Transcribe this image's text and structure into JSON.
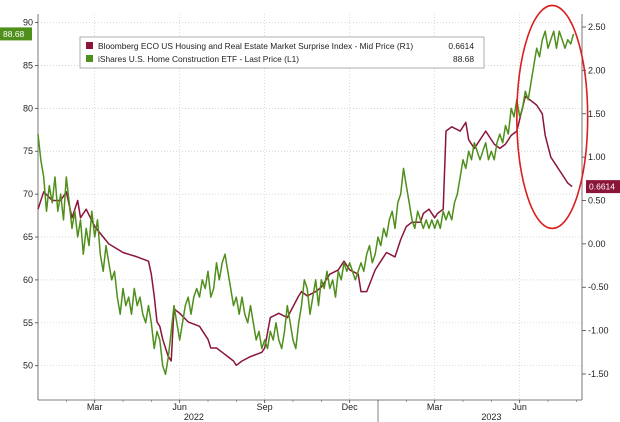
{
  "chart_data": {
    "type": "line",
    "legend": {
      "placement": "top-left",
      "entries": [
        {
          "label": "Bloomberg ECO US Housing and Real Estate Market Surprise Index - Mid Price (R1)",
          "value": "0.6614",
          "color": "#8a1538"
        },
        {
          "label": "iShares U.S. Home Construction ETF - Last Price (L1)",
          "value": "88.68",
          "color": "#4f8f1c"
        }
      ]
    },
    "x_axis": {
      "month_labels": [
        "Mar",
        "Jun",
        "Sep",
        "Dec",
        "Mar",
        "Jun"
      ],
      "month_positions": [
        2,
        5,
        8,
        11,
        14,
        17
      ],
      "year_labels": [
        "2022",
        "2023"
      ],
      "year_positions": [
        5.5,
        16
      ],
      "year_boundary": 12,
      "range": [
        0,
        19.2
      ]
    },
    "y_left": {
      "range": [
        46,
        91
      ],
      "ticks": [
        50,
        55,
        60,
        65,
        70,
        75,
        80,
        85,
        90
      ]
    },
    "y_right": {
      "range": [
        -1.8,
        2.65
      ],
      "ticks": [
        -1.5,
        -1.0,
        -0.5,
        0.0,
        0.5,
        1.0,
        1.5,
        2.0,
        2.5
      ],
      "tick_labels": [
        "-1.50",
        "-1.00",
        "-0.50",
        "0.00",
        "0.50",
        "1.00",
        "1.50",
        "2.00",
        "2.50"
      ]
    },
    "grid": true,
    "badges": {
      "left": "88.68",
      "right": "0.6614"
    },
    "series": [
      {
        "id": "housing_surprise",
        "axis": "right",
        "color": "#8a1538",
        "points": [
          [
            0.0,
            0.4
          ],
          [
            0.2,
            0.6
          ],
          [
            0.5,
            0.5
          ],
          [
            0.8,
            0.5
          ],
          [
            1.0,
            0.6
          ],
          [
            1.2,
            0.3
          ],
          [
            1.4,
            0.5
          ],
          [
            1.5,
            0.3
          ],
          [
            1.7,
            0.4
          ],
          [
            2.0,
            0.2
          ],
          [
            2.5,
            0.0
          ],
          [
            3.0,
            -0.1
          ],
          [
            3.5,
            -0.15
          ],
          [
            3.9,
            -0.2
          ],
          [
            4.0,
            -0.35
          ],
          [
            4.1,
            -0.6
          ],
          [
            4.2,
            -0.9
          ],
          [
            4.3,
            -0.95
          ],
          [
            4.4,
            -1.1
          ],
          [
            4.6,
            -1.3
          ],
          [
            4.7,
            -1.35
          ],
          [
            4.8,
            -0.75
          ],
          [
            5.0,
            -0.8
          ],
          [
            5.3,
            -0.9
          ],
          [
            5.7,
            -0.95
          ],
          [
            6.0,
            -1.1
          ],
          [
            6.1,
            -1.2
          ],
          [
            6.3,
            -1.2
          ],
          [
            6.5,
            -1.25
          ],
          [
            6.7,
            -1.3
          ],
          [
            6.9,
            -1.35
          ],
          [
            7.0,
            -1.4
          ],
          [
            7.2,
            -1.35
          ],
          [
            7.5,
            -1.3
          ],
          [
            7.9,
            -1.25
          ],
          [
            8.0,
            -1.2
          ],
          [
            8.2,
            -0.85
          ],
          [
            8.5,
            -0.8
          ],
          [
            8.8,
            -0.85
          ],
          [
            9.2,
            -0.6
          ],
          [
            9.3,
            -0.55
          ],
          [
            9.5,
            -0.6
          ],
          [
            9.8,
            -0.55
          ],
          [
            10.0,
            -0.5
          ],
          [
            10.3,
            -0.35
          ],
          [
            10.6,
            -0.3
          ],
          [
            10.8,
            -0.2
          ],
          [
            11.0,
            -0.3
          ],
          [
            11.3,
            -0.35
          ],
          [
            11.4,
            -0.55
          ],
          [
            11.6,
            -0.55
          ],
          [
            11.9,
            -0.3
          ],
          [
            12.1,
            -0.2
          ],
          [
            12.3,
            -0.1
          ],
          [
            12.6,
            -0.15
          ],
          [
            12.8,
            0.05
          ],
          [
            13.0,
            0.2
          ],
          [
            13.2,
            0.25
          ],
          [
            13.5,
            0.25
          ],
          [
            13.6,
            0.35
          ],
          [
            13.8,
            0.4
          ],
          [
            14.0,
            0.3
          ],
          [
            14.1,
            0.35
          ],
          [
            14.3,
            0.4
          ],
          [
            14.4,
            1.3
          ],
          [
            14.6,
            1.35
          ],
          [
            14.9,
            1.3
          ],
          [
            15.1,
            1.4
          ],
          [
            15.2,
            1.2
          ],
          [
            15.4,
            1.1
          ],
          [
            15.6,
            1.2
          ],
          [
            15.8,
            1.3
          ],
          [
            16.1,
            1.15
          ],
          [
            16.3,
            1.1
          ],
          [
            16.5,
            1.15
          ],
          [
            16.7,
            1.25
          ],
          [
            16.9,
            1.3
          ],
          [
            17.2,
            1.7
          ],
          [
            17.4,
            1.65
          ],
          [
            17.6,
            1.6
          ],
          [
            17.8,
            1.5
          ],
          [
            17.9,
            1.25
          ],
          [
            18.1,
            1.0
          ],
          [
            18.3,
            0.9
          ],
          [
            18.5,
            0.8
          ],
          [
            18.7,
            0.7
          ],
          [
            18.85,
            0.66
          ]
        ]
      },
      {
        "id": "home_construction_etf",
        "axis": "left",
        "color": "#4f8f1c",
        "points": [
          [
            0.0,
            77
          ],
          [
            0.1,
            74
          ],
          [
            0.2,
            72
          ],
          [
            0.3,
            68
          ],
          [
            0.4,
            71
          ],
          [
            0.5,
            69
          ],
          [
            0.6,
            72
          ],
          [
            0.7,
            68
          ],
          [
            0.8,
            70
          ],
          [
            0.9,
            67
          ],
          [
            1.0,
            72
          ],
          [
            1.1,
            69
          ],
          [
            1.2,
            66
          ],
          [
            1.3,
            68
          ],
          [
            1.4,
            65
          ],
          [
            1.5,
            67
          ],
          [
            1.6,
            63
          ],
          [
            1.7,
            66
          ],
          [
            1.8,
            64
          ],
          [
            1.9,
            68
          ],
          [
            2.0,
            65
          ],
          [
            2.1,
            67
          ],
          [
            2.2,
            63
          ],
          [
            2.3,
            61
          ],
          [
            2.4,
            64
          ],
          [
            2.5,
            62
          ],
          [
            2.6,
            60
          ],
          [
            2.7,
            61
          ],
          [
            2.8,
            58
          ],
          [
            2.9,
            56
          ],
          [
            3.0,
            59
          ],
          [
            3.1,
            57
          ],
          [
            3.2,
            58
          ],
          [
            3.3,
            56
          ],
          [
            3.4,
            59
          ],
          [
            3.5,
            57
          ],
          [
            3.6,
            58
          ],
          [
            3.7,
            56
          ],
          [
            3.8,
            55
          ],
          [
            3.9,
            57
          ],
          [
            4.0,
            55
          ],
          [
            4.1,
            52
          ],
          [
            4.2,
            54
          ],
          [
            4.3,
            53
          ],
          [
            4.4,
            50
          ],
          [
            4.5,
            49
          ],
          [
            4.6,
            51
          ],
          [
            4.7,
            54
          ],
          [
            4.8,
            57
          ],
          [
            4.9,
            55
          ],
          [
            5.0,
            53
          ],
          [
            5.1,
            55
          ],
          [
            5.2,
            57
          ],
          [
            5.3,
            58
          ],
          [
            5.4,
            56
          ],
          [
            5.5,
            58
          ],
          [
            5.6,
            59
          ],
          [
            5.7,
            58
          ],
          [
            5.8,
            60
          ],
          [
            5.9,
            59
          ],
          [
            6.0,
            61
          ],
          [
            6.1,
            58
          ],
          [
            6.2,
            59
          ],
          [
            6.3,
            62
          ],
          [
            6.4,
            60
          ],
          [
            6.5,
            62
          ],
          [
            6.6,
            63
          ],
          [
            6.7,
            61
          ],
          [
            6.8,
            59
          ],
          [
            6.9,
            57
          ],
          [
            7.0,
            58
          ],
          [
            7.1,
            56
          ],
          [
            7.2,
            58
          ],
          [
            7.3,
            56
          ],
          [
            7.4,
            55
          ],
          [
            7.5,
            57
          ],
          [
            7.6,
            55
          ],
          [
            7.7,
            53
          ],
          [
            7.8,
            54
          ],
          [
            7.9,
            52
          ],
          [
            8.0,
            53
          ],
          [
            8.1,
            52
          ],
          [
            8.2,
            54
          ],
          [
            8.3,
            53
          ],
          [
            8.4,
            55
          ],
          [
            8.5,
            53
          ],
          [
            8.6,
            52
          ],
          [
            8.7,
            54
          ],
          [
            8.8,
            57
          ],
          [
            8.9,
            55
          ],
          [
            9.0,
            53
          ],
          [
            9.1,
            52
          ],
          [
            9.2,
            55
          ],
          [
            9.3,
            57
          ],
          [
            9.4,
            60
          ],
          [
            9.5,
            59
          ],
          [
            9.6,
            56
          ],
          [
            9.7,
            58
          ],
          [
            9.8,
            60
          ],
          [
            9.9,
            57
          ],
          [
            10.0,
            60
          ],
          [
            10.1,
            59
          ],
          [
            10.2,
            61
          ],
          [
            10.3,
            59
          ],
          [
            10.4,
            60
          ],
          [
            10.5,
            58
          ],
          [
            10.6,
            61
          ],
          [
            10.7,
            60
          ],
          [
            10.8,
            62
          ],
          [
            10.9,
            61
          ],
          [
            11.0,
            62
          ],
          [
            11.1,
            61
          ],
          [
            11.2,
            60
          ],
          [
            11.3,
            61
          ],
          [
            11.4,
            62
          ],
          [
            11.5,
            61
          ],
          [
            11.6,
            63
          ],
          [
            11.7,
            64
          ],
          [
            11.8,
            62
          ],
          [
            11.9,
            63
          ],
          [
            12.0,
            65
          ],
          [
            12.1,
            64
          ],
          [
            12.2,
            66
          ],
          [
            12.3,
            65
          ],
          [
            12.4,
            67
          ],
          [
            12.5,
            68
          ],
          [
            12.6,
            66
          ],
          [
            12.7,
            69
          ],
          [
            12.8,
            70
          ],
          [
            12.9,
            73
          ],
          [
            13.0,
            71
          ],
          [
            13.1,
            69
          ],
          [
            13.2,
            67
          ],
          [
            13.3,
            66
          ],
          [
            13.4,
            68
          ],
          [
            13.5,
            67
          ],
          [
            13.6,
            66
          ],
          [
            13.7,
            67
          ],
          [
            13.8,
            66
          ],
          [
            13.9,
            67
          ],
          [
            14.0,
            66
          ],
          [
            14.1,
            67
          ],
          [
            14.2,
            66
          ],
          [
            14.3,
            68
          ],
          [
            14.4,
            67
          ],
          [
            14.5,
            68
          ],
          [
            14.6,
            67
          ],
          [
            14.7,
            69
          ],
          [
            14.8,
            70
          ],
          [
            14.9,
            72
          ],
          [
            15.0,
            74
          ],
          [
            15.1,
            73
          ],
          [
            15.2,
            75
          ],
          [
            15.3,
            74
          ],
          [
            15.4,
            76
          ],
          [
            15.5,
            75
          ],
          [
            15.6,
            74
          ],
          [
            15.7,
            75
          ],
          [
            15.8,
            76
          ],
          [
            15.9,
            74
          ],
          [
            16.0,
            75
          ],
          [
            16.1,
            74
          ],
          [
            16.2,
            76
          ],
          [
            16.3,
            77
          ],
          [
            16.4,
            76
          ],
          [
            16.5,
            78
          ],
          [
            16.6,
            77
          ],
          [
            16.7,
            80
          ],
          [
            16.8,
            79
          ],
          [
            16.9,
            81
          ],
          [
            17.0,
            79
          ],
          [
            17.1,
            80
          ],
          [
            17.2,
            82
          ],
          [
            17.3,
            81
          ],
          [
            17.4,
            83
          ],
          [
            17.5,
            85
          ],
          [
            17.6,
            87
          ],
          [
            17.7,
            86
          ],
          [
            17.8,
            88
          ],
          [
            17.9,
            89
          ],
          [
            18.0,
            87
          ],
          [
            18.1,
            88
          ],
          [
            18.2,
            89
          ],
          [
            18.3,
            87
          ],
          [
            18.4,
            89
          ],
          [
            18.5,
            88
          ],
          [
            18.6,
            87
          ],
          [
            18.7,
            88
          ],
          [
            18.8,
            87.5
          ],
          [
            18.9,
            88.68
          ]
        ]
      }
    ],
    "annotation": {
      "shape": "ellipse",
      "color": "#d9201e",
      "x_range": [
        16.9,
        19.4
      ],
      "y_left_range": [
        66,
        92
      ]
    }
  }
}
